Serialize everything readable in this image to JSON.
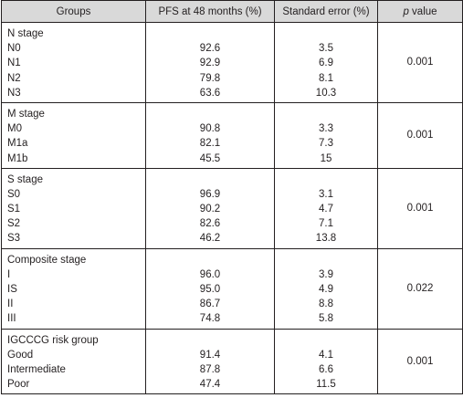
{
  "headers": {
    "groups": "Groups",
    "pfs": "PFS at 48 months (%)",
    "se": "Standard error (%)",
    "p_prefix": "p",
    "p_suffix": " value"
  },
  "sections": [
    {
      "title": "N stage",
      "p": "0.001",
      "rows": [
        {
          "label": "N0",
          "pfs": "92.6",
          "se": "3.5"
        },
        {
          "label": "N1",
          "pfs": "92.9",
          "se": "6.9"
        },
        {
          "label": "N2",
          "pfs": "79.8",
          "se": "8.1"
        },
        {
          "label": "N3",
          "pfs": "63.6",
          "se": "10.3"
        }
      ]
    },
    {
      "title": "M stage",
      "p": "0.001",
      "rows": [
        {
          "label": "M0",
          "pfs": "90.8",
          "se": "3.3"
        },
        {
          "label": "M1a",
          "pfs": "82.1",
          "se": "7.3"
        },
        {
          "label": "M1b",
          "pfs": "45.5",
          "se": "15"
        }
      ]
    },
    {
      "title": "S stage",
      "p": "0.001",
      "rows": [
        {
          "label": "S0",
          "pfs": "96.9",
          "se": "3.1"
        },
        {
          "label": "S1",
          "pfs": "90.2",
          "se": "4.7"
        },
        {
          "label": "S2",
          "pfs": "82.6",
          "se": "7.1"
        },
        {
          "label": "S3",
          "pfs": "46.2",
          "se": "13.8"
        }
      ]
    },
    {
      "title": "Composite stage",
      "p": "0.022",
      "rows": [
        {
          "label": "I",
          "pfs": "96.0",
          "se": "3.9"
        },
        {
          "label": "IS",
          "pfs": "95.0",
          "se": "4.9"
        },
        {
          "label": "II",
          "pfs": "86.7",
          "se": "8.8"
        },
        {
          "label": "III",
          "pfs": "74.8",
          "se": "5.8"
        }
      ]
    },
    {
      "title": "IGCCCG risk group",
      "p": "0.001",
      "rows": [
        {
          "label": "Good",
          "pfs": "91.4",
          "se": "4.1"
        },
        {
          "label": "Intermediate",
          "pfs": "87.8",
          "se": "6.6"
        },
        {
          "label": "Poor",
          "pfs": "47.4",
          "se": "11.5"
        }
      ]
    }
  ]
}
